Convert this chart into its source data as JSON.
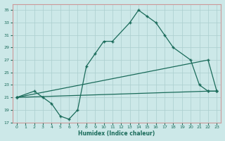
{
  "line1_x": [
    0,
    2,
    3,
    4,
    5,
    6,
    7,
    8,
    9,
    10,
    11,
    13,
    14,
    15,
    16,
    17,
    18,
    20,
    21,
    22,
    23
  ],
  "line1_y": [
    21,
    22,
    21,
    20,
    18,
    17.5,
    19,
    26,
    28,
    30,
    30,
    33,
    35,
    34,
    33,
    31,
    29,
    27,
    23,
    22,
    22
  ],
  "line2_x": [
    0,
    22,
    23
  ],
  "line2_y": [
    21,
    27,
    22
  ],
  "line3_x": [
    0,
    22,
    23
  ],
  "line3_y": [
    21,
    22,
    22
  ],
  "xlim": [
    -0.5,
    23.5
  ],
  "ylim": [
    17,
    36
  ],
  "xticks": [
    0,
    1,
    2,
    3,
    4,
    5,
    6,
    7,
    8,
    9,
    10,
    11,
    12,
    13,
    14,
    15,
    16,
    17,
    18,
    19,
    20,
    21,
    22,
    23
  ],
  "yticks": [
    17,
    19,
    21,
    23,
    25,
    27,
    29,
    31,
    33,
    35
  ],
  "xlabel": "Humidex (Indice chaleur)",
  "line_color": "#1a6b5a",
  "bg_color": "#cce8e8",
  "grid_color": "#aacece",
  "spine_color": "#cc9999"
}
